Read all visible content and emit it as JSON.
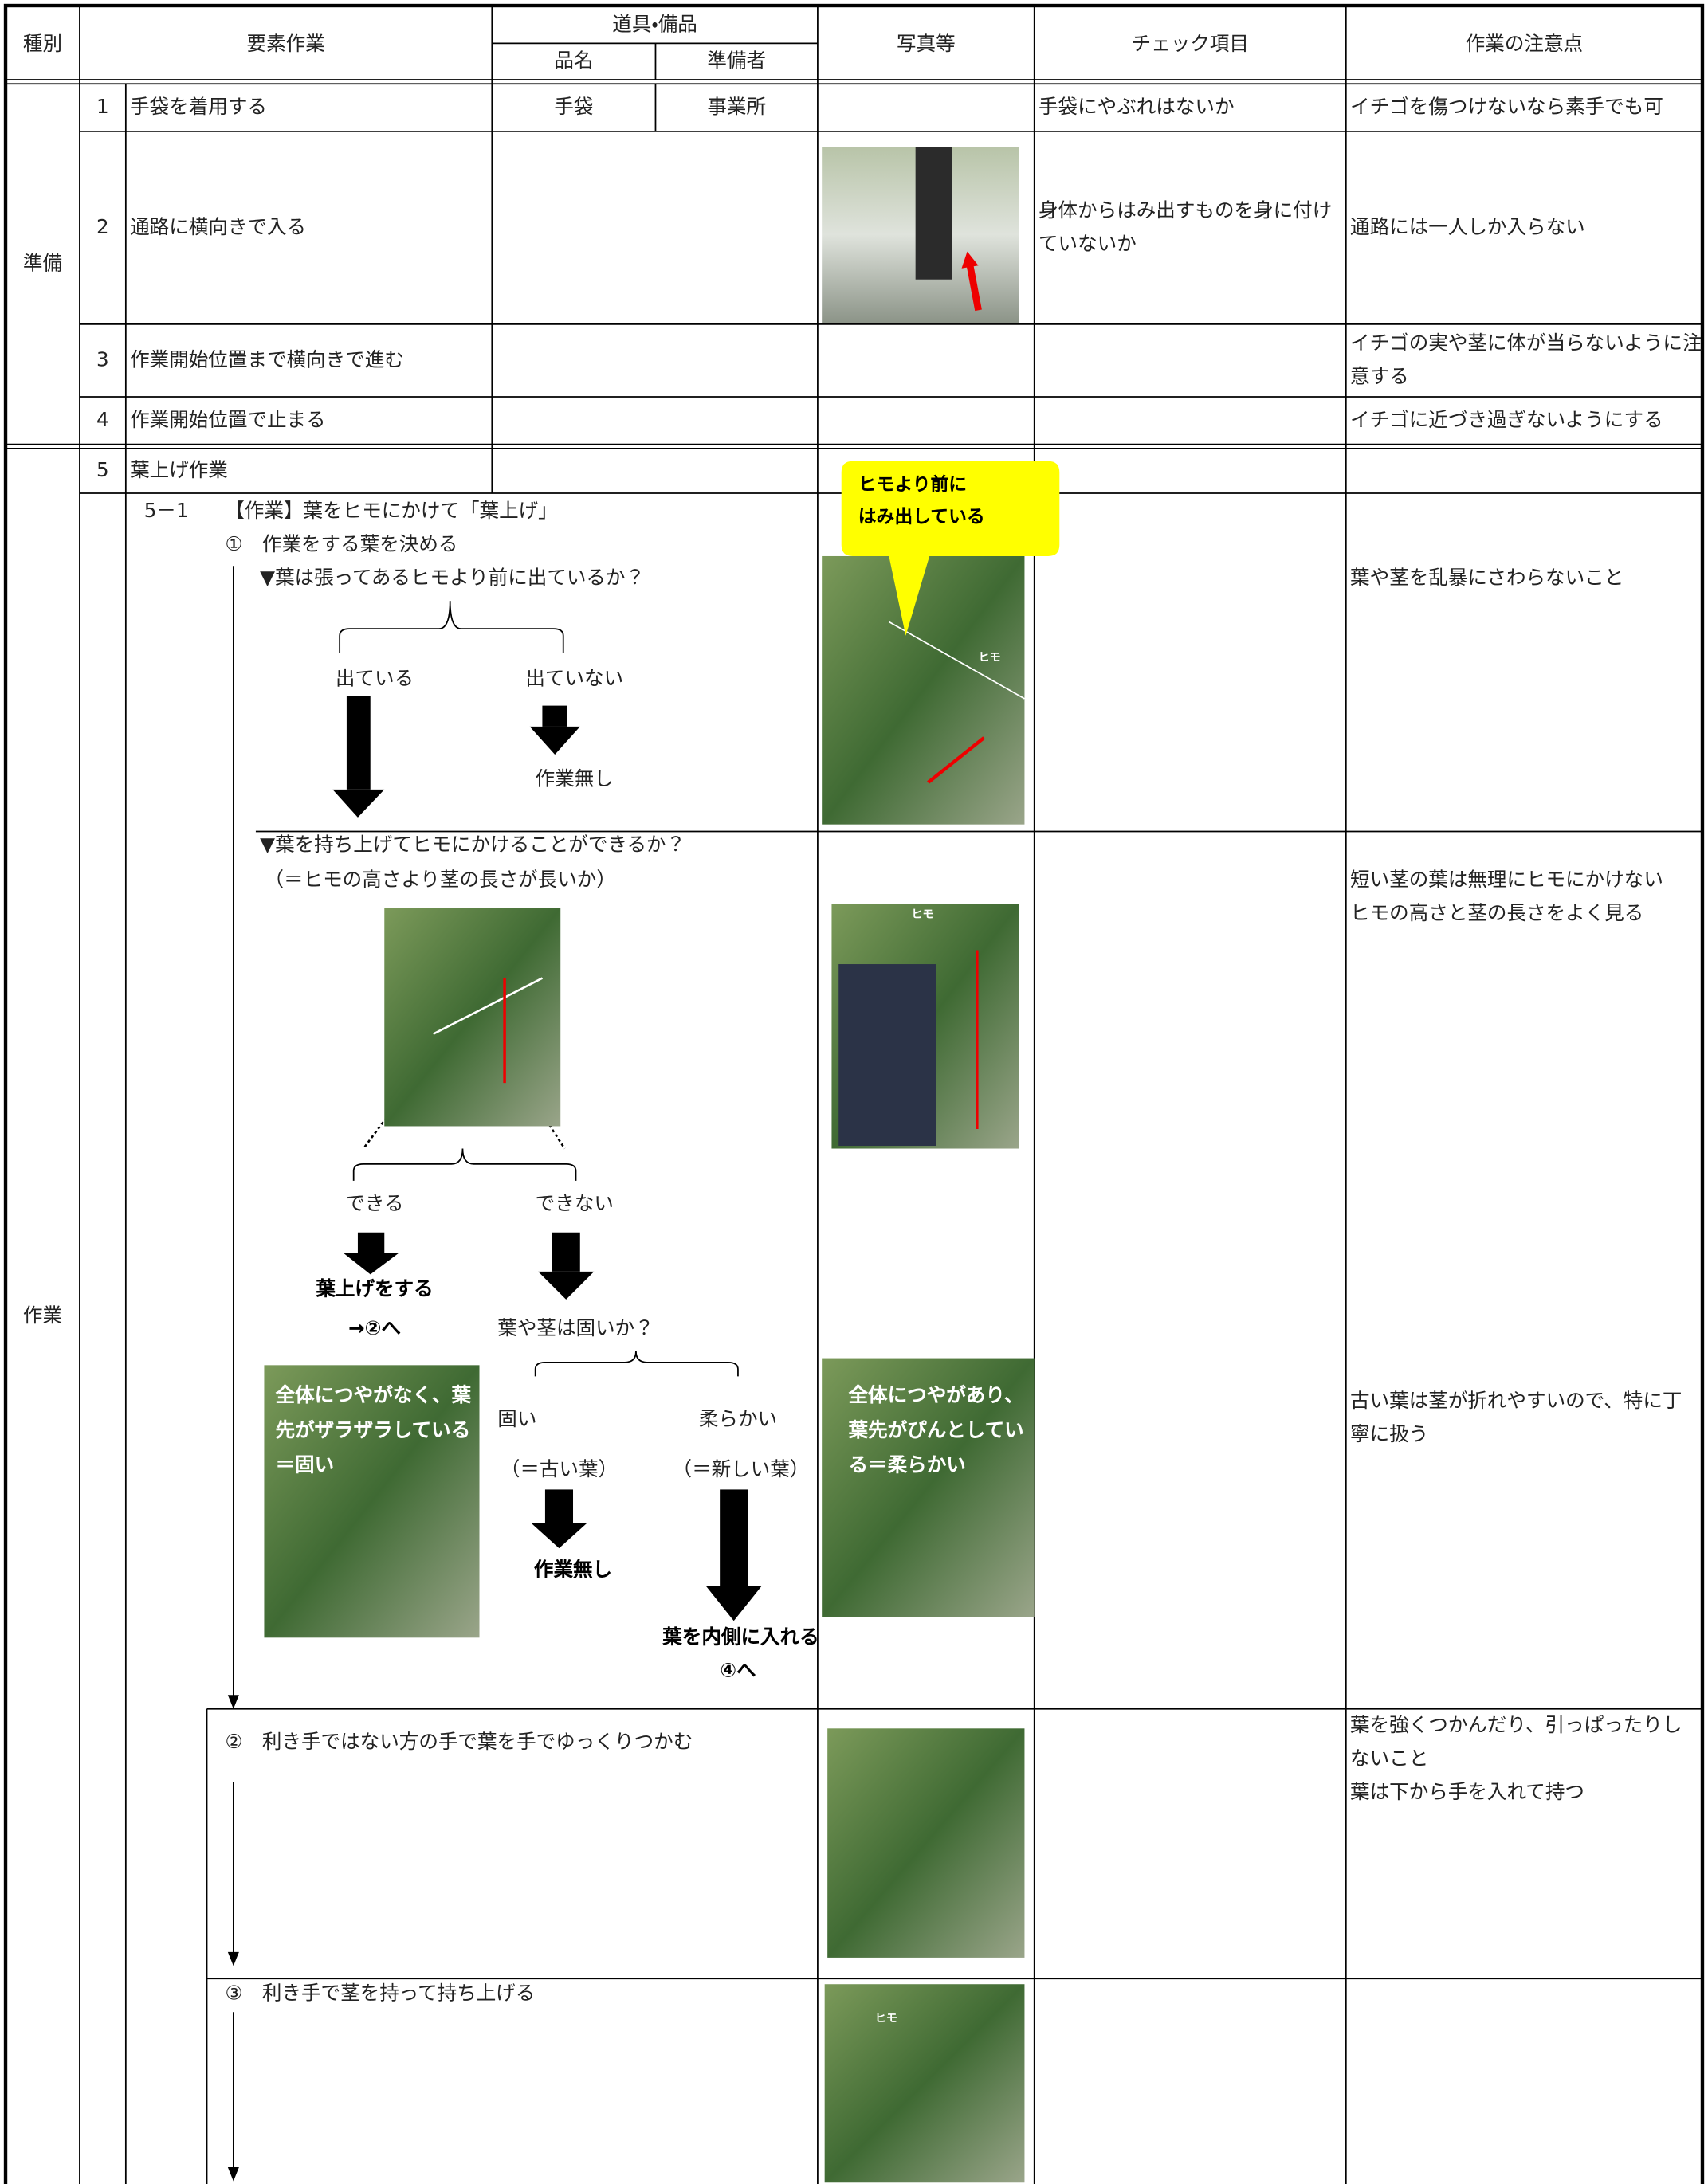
{
  "header": {
    "category": "種別",
    "element_work": "要素作業",
    "tools": "道具・備品",
    "item_name": "品名",
    "provider": "準備者",
    "photo": "写真等",
    "check_item": "チェック項目",
    "notes": "作業の注意点"
  },
  "sections": [
    "準備",
    "作業"
  ],
  "prep_steps": [
    {
      "no": "1",
      "task": "手袋を着用する",
      "item": "手袋",
      "provider": "事業所",
      "check": "手袋にやぶれはないか",
      "note": "イチゴを傷つけないなら素手でも可"
    },
    {
      "no": "2",
      "task": "通路に横向きで入る",
      "check": "身体からはみ出すものを身に付けていないか",
      "note": "通路には一人しか入らない"
    },
    {
      "no": "3",
      "task": "作業開始位置まで横向きで進む",
      "note": "イチゴの実や茎に体が当らないように注意する"
    },
    {
      "no": "4",
      "task": "作業開始位置で止まる",
      "note": "イチゴに近づき過ぎないようにする"
    }
  ],
  "work_step": {
    "no": "5",
    "task": "葉上げ作業",
    "sub_no": "5－1",
    "sub_title": "【作業】葉をヒモにかけて「葉上げ」",
    "substeps": [
      "①　作業をする葉を決める",
      "②　利き手ではない方の手で葉を手でゆっくりつかむ",
      "③　利き手で茎を持って持ち上げる"
    ]
  },
  "flow": {
    "q1": "▼葉は張ってあるヒモより前に出ているか？",
    "q1_yes": "出ている",
    "q1_no": "出ていない",
    "q1_no_result": "作業無し",
    "q2": "▼葉を持ち上げてヒモにかけることができるか？",
    "q2_note": "（＝ヒモの高さより茎の長さが長いか）",
    "q2_yes": "できる",
    "q2_no": "できない",
    "q2_yes_result": "葉上げをする",
    "q2_yes_next": "→②へ",
    "q3": "葉や茎は固いか？",
    "q3_hard": "固い",
    "q3_soft": "柔らかい",
    "q3_hard_note": "（＝古い葉）",
    "q3_soft_note": "（＝新しい葉）",
    "q3_hard_result": "作業無し",
    "q3_soft_result": "葉を内側に入れる",
    "q3_soft_next": "④へ"
  },
  "photo_text": {
    "callout": [
      "ヒモより前に",
      "はみ出している"
    ],
    "hard": "全体につやがなく、葉先がザラザラしている＝固い",
    "soft": "全体につやがあり、葉先がぴんとしている＝柔らかい",
    "rope_labels": [
      "ヒモ",
      "ヒモ",
      "ヒモ"
    ]
  },
  "notes": [
    [
      "葉や茎を乱暴にさわらないこと"
    ],
    [
      "短い茎の葉は無理にヒモにかけない",
      "ヒモの高さと茎の長さをよく見る"
    ],
    [
      "古い葉は茎が折れやすいので、特に丁寧に扱う"
    ],
    [
      "葉を強くつかんだり、引っぱったりしないこと",
      "葉は下から手を入れて持つ"
    ]
  ]
}
